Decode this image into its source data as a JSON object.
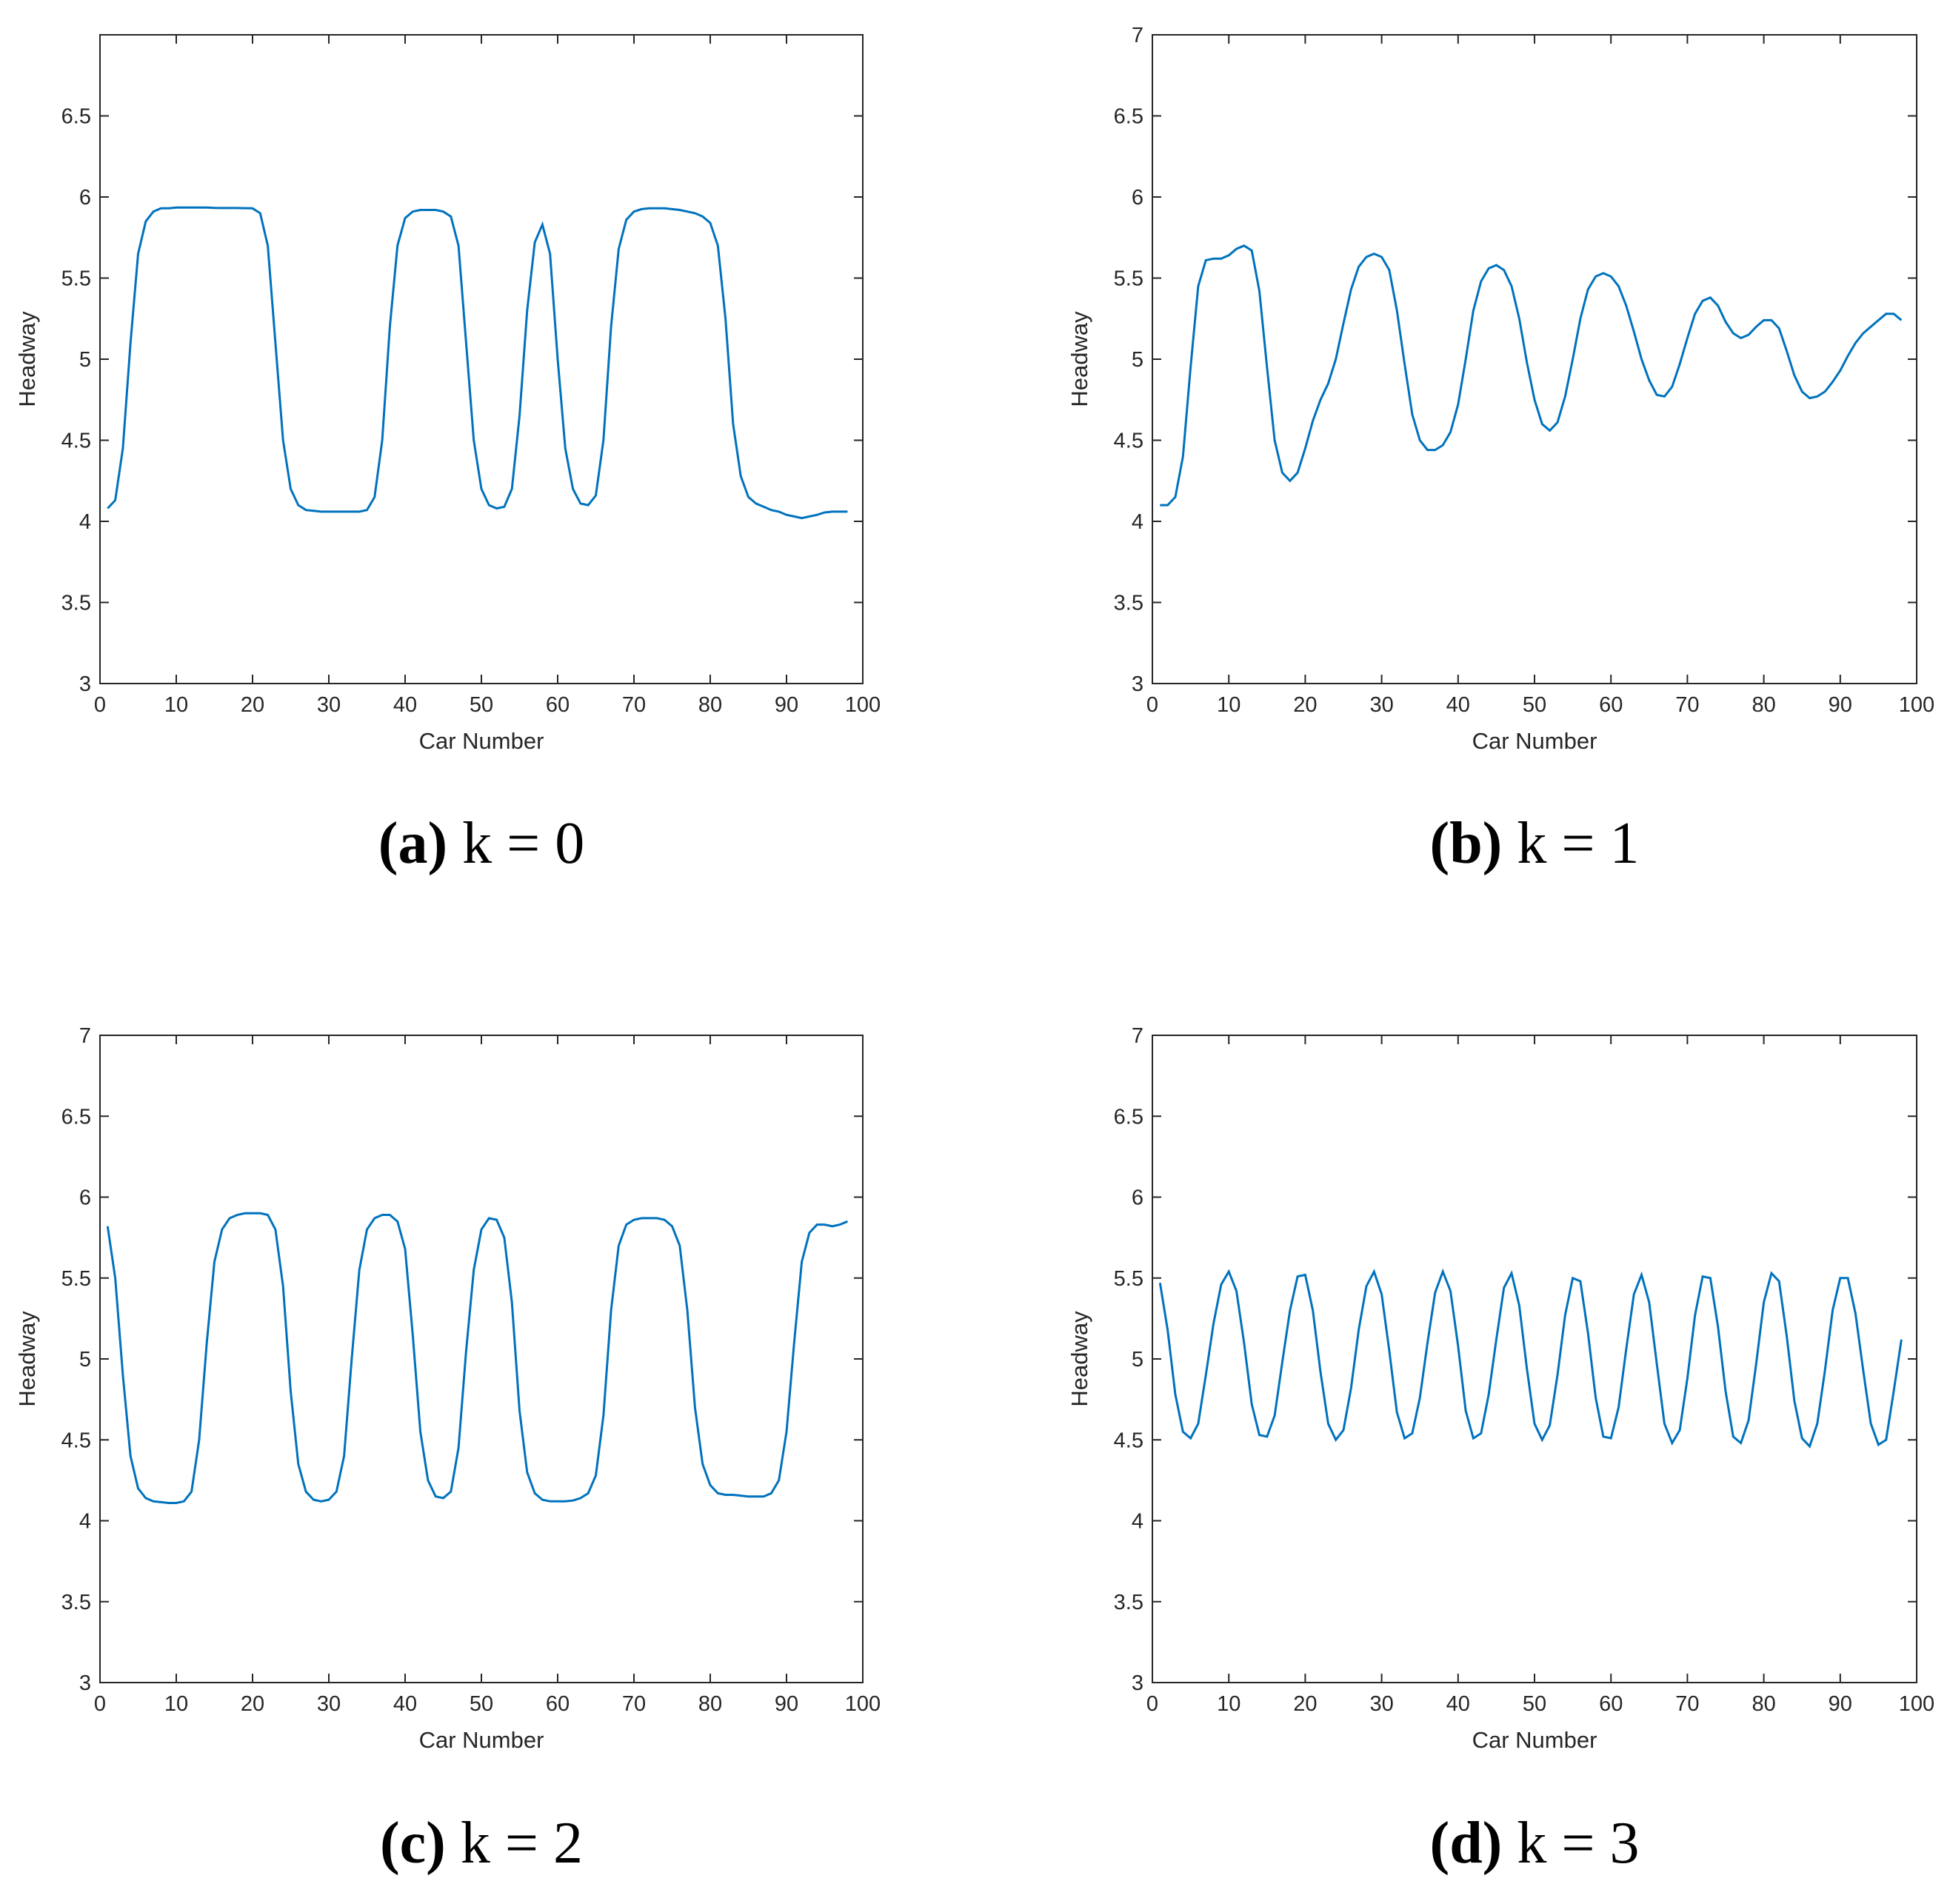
{
  "chart_data": [
    {
      "type": "line",
      "label": "(a)",
      "caption": "k = 0",
      "xlabel": "Car Number",
      "ylabel": "Headway",
      "color": "#0072bd",
      "xlim": [
        0,
        100
      ],
      "xticks": [
        0,
        10,
        20,
        30,
        40,
        50,
        60,
        70,
        80,
        90,
        100
      ],
      "ylim": [
        3,
        7
      ],
      "yticks": [
        3,
        3.5,
        4,
        4.5,
        5,
        5.5,
        6,
        6.5
      ],
      "x": [
        1,
        2,
        3,
        4,
        5,
        6,
        7,
        8,
        9,
        10,
        11,
        12,
        13,
        14,
        15,
        16,
        17,
        18,
        19,
        20,
        21,
        22,
        23,
        24,
        25,
        26,
        27,
        28,
        29,
        30,
        31,
        32,
        33,
        34,
        35,
        36,
        37,
        38,
        39,
        40,
        41,
        42,
        43,
        44,
        45,
        46,
        47,
        48,
        49,
        50,
        51,
        52,
        53,
        54,
        55,
        56,
        57,
        58,
        59,
        60,
        61,
        62,
        63,
        64,
        65,
        66,
        67,
        68,
        69,
        70,
        71,
        72,
        73,
        74,
        75,
        76,
        77,
        78,
        79,
        80,
        81,
        82,
        83,
        84,
        85,
        86,
        87,
        88,
        89,
        90,
        91,
        92,
        93,
        94,
        95,
        96,
        97,
        98
      ],
      "values": [
        4.08,
        4.13,
        4.45,
        5.1,
        5.65,
        5.85,
        5.91,
        5.93,
        5.93,
        5.935,
        5.935,
        5.935,
        5.935,
        5.935,
        5.933,
        5.932,
        5.932,
        5.932,
        5.931,
        5.93,
        5.9,
        5.7,
        5.1,
        4.5,
        4.2,
        4.1,
        4.07,
        4.065,
        4.06,
        4.06,
        4.06,
        4.06,
        4.06,
        4.06,
        4.07,
        4.15,
        4.5,
        5.2,
        5.7,
        5.87,
        5.91,
        5.92,
        5.92,
        5.92,
        5.91,
        5.88,
        5.7,
        5.1,
        4.5,
        4.2,
        4.1,
        4.08,
        4.09,
        4.2,
        4.65,
        5.3,
        5.72,
        5.83,
        5.65,
        5.0,
        4.45,
        4.2,
        4.11,
        4.1,
        4.16,
        4.5,
        5.2,
        5.68,
        5.86,
        5.91,
        5.925,
        5.93,
        5.93,
        5.93,
        5.925,
        5.92,
        5.91,
        5.9,
        5.88,
        5.84,
        5.7,
        5.25,
        4.6,
        4.28,
        4.15,
        4.11,
        4.09,
        4.07,
        4.06,
        4.04,
        4.03,
        4.02,
        4.03,
        4.04,
        4.055,
        4.06,
        4.06,
        4.06
      ]
    },
    {
      "type": "line",
      "label": "(b)",
      "caption": "k = 1",
      "xlabel": "Car Number",
      "ylabel": "Headway",
      "color": "#0072bd",
      "xlim": [
        0,
        100
      ],
      "xticks": [
        0,
        10,
        20,
        30,
        40,
        50,
        60,
        70,
        80,
        90,
        100
      ],
      "ylim": [
        3,
        7
      ],
      "yticks": [
        3,
        3.5,
        4,
        4.5,
        5,
        5.5,
        6,
        6.5,
        7
      ],
      "x": [
        1,
        2,
        3,
        4,
        5,
        6,
        7,
        8,
        9,
        10,
        11,
        12,
        13,
        14,
        15,
        16,
        17,
        18,
        19,
        20,
        21,
        22,
        23,
        24,
        25,
        26,
        27,
        28,
        29,
        30,
        31,
        32,
        33,
        34,
        35,
        36,
        37,
        38,
        39,
        40,
        41,
        42,
        43,
        44,
        45,
        46,
        47,
        48,
        49,
        50,
        51,
        52,
        53,
        54,
        55,
        56,
        57,
        58,
        59,
        60,
        61,
        62,
        63,
        64,
        65,
        66,
        67,
        68,
        69,
        70,
        71,
        72,
        73,
        74,
        75,
        76,
        77,
        78,
        79,
        80,
        81,
        82,
        83,
        84,
        85,
        86,
        87,
        88,
        89,
        90,
        91,
        92,
        93,
        94,
        95,
        96,
        97,
        98
      ],
      "values": [
        4.1,
        4.1,
        4.15,
        4.4,
        4.95,
        5.45,
        5.61,
        5.62,
        5.62,
        5.64,
        5.68,
        5.7,
        5.67,
        5.42,
        4.95,
        4.5,
        4.3,
        4.25,
        4.3,
        4.45,
        4.62,
        4.75,
        4.85,
        5.0,
        5.22,
        5.43,
        5.57,
        5.63,
        5.65,
        5.63,
        5.55,
        5.3,
        4.97,
        4.66,
        4.5,
        4.44,
        4.44,
        4.47,
        4.55,
        4.72,
        5.0,
        5.3,
        5.48,
        5.56,
        5.58,
        5.55,
        5.45,
        5.25,
        4.98,
        4.75,
        4.6,
        4.56,
        4.61,
        4.77,
        5.0,
        5.25,
        5.43,
        5.51,
        5.53,
        5.51,
        5.45,
        5.33,
        5.17,
        5.0,
        4.87,
        4.78,
        4.77,
        4.83,
        4.97,
        5.13,
        5.28,
        5.36,
        5.38,
        5.33,
        5.23,
        5.16,
        5.13,
        5.15,
        5.2,
        5.24,
        5.24,
        5.19,
        5.05,
        4.9,
        4.8,
        4.76,
        4.77,
        4.8,
        4.86,
        4.93,
        5.02,
        5.1,
        5.16,
        5.2,
        5.24,
        5.28,
        5.28,
        5.24
      ]
    },
    {
      "type": "line",
      "label": "(c)",
      "caption": "k = 2",
      "xlabel": "Car Number",
      "ylabel": "Headway",
      "color": "#0072bd",
      "xlim": [
        0,
        100
      ],
      "xticks": [
        0,
        10,
        20,
        30,
        40,
        50,
        60,
        70,
        80,
        90,
        100
      ],
      "ylim": [
        3,
        7
      ],
      "yticks": [
        3,
        3.5,
        4,
        4.5,
        5,
        5.5,
        6,
        6.5,
        7
      ],
      "x": [
        1,
        2,
        3,
        4,
        5,
        6,
        7,
        8,
        9,
        10,
        11,
        12,
        13,
        14,
        15,
        16,
        17,
        18,
        19,
        20,
        21,
        22,
        23,
        24,
        25,
        26,
        27,
        28,
        29,
        30,
        31,
        32,
        33,
        34,
        35,
        36,
        37,
        38,
        39,
        40,
        41,
        42,
        43,
        44,
        45,
        46,
        47,
        48,
        49,
        50,
        51,
        52,
        53,
        54,
        55,
        56,
        57,
        58,
        59,
        60,
        61,
        62,
        63,
        64,
        65,
        66,
        67,
        68,
        69,
        70,
        71,
        72,
        73,
        74,
        75,
        76,
        77,
        78,
        79,
        80,
        81,
        82,
        83,
        84,
        85,
        86,
        87,
        88,
        89,
        90,
        91,
        92,
        93,
        94,
        95,
        96,
        97,
        98
      ],
      "values": [
        5.82,
        5.5,
        4.9,
        4.4,
        4.2,
        4.14,
        4.12,
        4.115,
        4.11,
        4.11,
        4.12,
        4.18,
        4.5,
        5.1,
        5.6,
        5.8,
        5.87,
        5.89,
        5.9,
        5.9,
        5.9,
        5.89,
        5.8,
        5.45,
        4.8,
        4.35,
        4.18,
        4.13,
        4.12,
        4.13,
        4.18,
        4.4,
        5.0,
        5.55,
        5.8,
        5.87,
        5.89,
        5.89,
        5.85,
        5.68,
        5.15,
        4.55,
        4.25,
        4.15,
        4.14,
        4.18,
        4.45,
        5.05,
        5.55,
        5.8,
        5.87,
        5.86,
        5.75,
        5.35,
        4.68,
        4.3,
        4.17,
        4.13,
        4.12,
        4.12,
        4.12,
        4.125,
        4.14,
        4.17,
        4.28,
        4.65,
        5.3,
        5.7,
        5.83,
        5.86,
        5.87,
        5.87,
        5.87,
        5.86,
        5.82,
        5.7,
        5.3,
        4.7,
        4.35,
        4.22,
        4.17,
        4.16,
        4.16,
        4.155,
        4.15,
        4.15,
        4.15,
        4.17,
        4.25,
        4.55,
        5.1,
        5.6,
        5.78,
        5.83,
        5.83,
        5.82,
        5.83,
        5.85
      ]
    },
    {
      "type": "line",
      "label": "(d)",
      "caption": "k = 3",
      "xlabel": "Car Number",
      "ylabel": "Headway",
      "color": "#0072bd",
      "xlim": [
        0,
        100
      ],
      "xticks": [
        0,
        10,
        20,
        30,
        40,
        50,
        60,
        70,
        80,
        90,
        100
      ],
      "ylim": [
        3,
        7
      ],
      "yticks": [
        3,
        3.5,
        4,
        4.5,
        5,
        5.5,
        6,
        6.5,
        7
      ],
      "x": [
        1,
        2,
        3,
        4,
        5,
        6,
        7,
        8,
        9,
        10,
        11,
        12,
        13,
        14,
        15,
        16,
        17,
        18,
        19,
        20,
        21,
        22,
        23,
        24,
        25,
        26,
        27,
        28,
        29,
        30,
        31,
        32,
        33,
        34,
        35,
        36,
        37,
        38,
        39,
        40,
        41,
        42,
        43,
        44,
        45,
        46,
        47,
        48,
        49,
        50,
        51,
        52,
        53,
        54,
        55,
        56,
        57,
        58,
        59,
        60,
        61,
        62,
        63,
        64,
        65,
        66,
        67,
        68,
        69,
        70,
        71,
        72,
        73,
        74,
        75,
        76,
        77,
        78,
        79,
        80,
        81,
        82,
        83,
        84,
        85,
        86,
        87,
        88,
        89,
        90,
        91,
        92,
        93,
        94,
        95,
        96,
        97,
        98
      ],
      "values": [
        5.47,
        5.18,
        4.78,
        4.55,
        4.51,
        4.6,
        4.9,
        5.22,
        5.46,
        5.54,
        5.42,
        5.1,
        4.72,
        4.53,
        4.52,
        4.65,
        4.98,
        5.3,
        5.51,
        5.52,
        5.3,
        4.92,
        4.6,
        4.5,
        4.56,
        4.82,
        5.18,
        5.45,
        5.54,
        5.4,
        5.05,
        4.67,
        4.51,
        4.54,
        4.76,
        5.1,
        5.41,
        5.54,
        5.42,
        5.08,
        4.68,
        4.51,
        4.54,
        4.78,
        5.12,
        5.44,
        5.53,
        5.33,
        4.94,
        4.6,
        4.5,
        4.59,
        4.9,
        5.27,
        5.5,
        5.48,
        5.16,
        4.76,
        4.52,
        4.51,
        4.7,
        5.06,
        5.4,
        5.52,
        5.35,
        4.97,
        4.6,
        4.48,
        4.56,
        4.88,
        5.27,
        5.51,
        5.5,
        5.2,
        4.8,
        4.52,
        4.48,
        4.62,
        4.97,
        5.35,
        5.53,
        5.48,
        5.14,
        4.74,
        4.51,
        4.46,
        4.6,
        4.93,
        5.3,
        5.5,
        5.5,
        5.28,
        4.93,
        4.6,
        4.47,
        4.5,
        4.8,
        5.12
      ]
    }
  ]
}
